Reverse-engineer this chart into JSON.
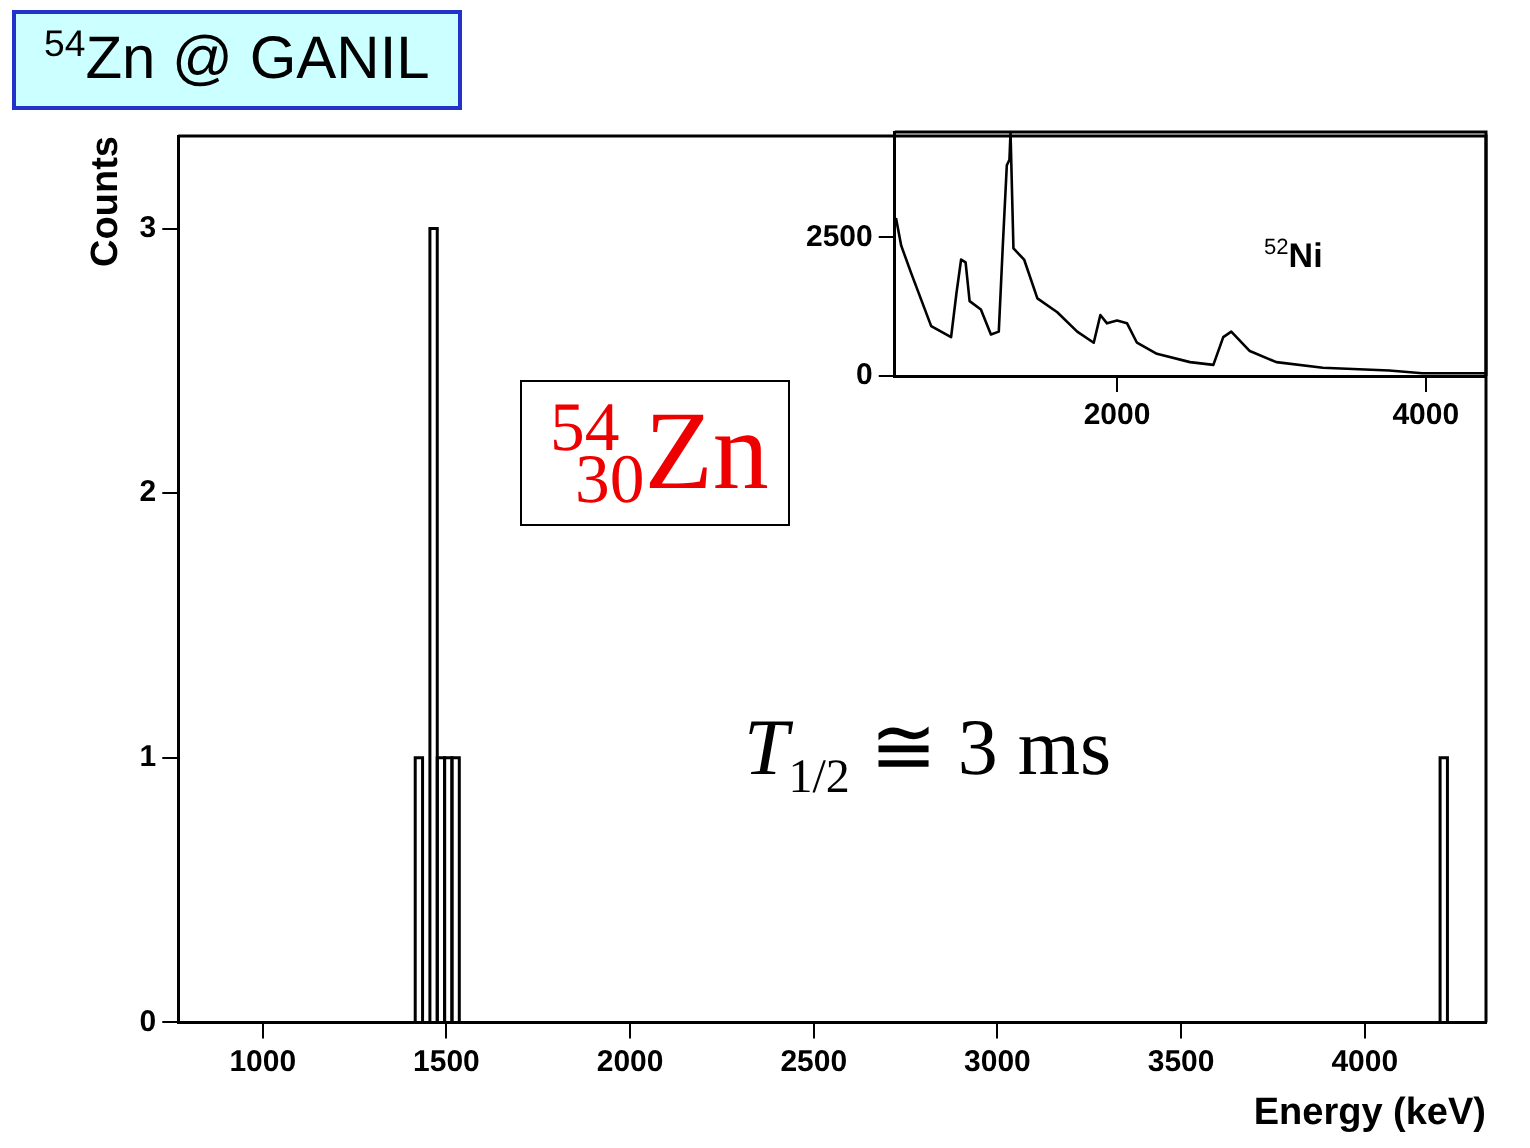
{
  "chart_data": [
    {
      "type": "histogram",
      "title": "$^{54}$Zn @ GANIL",
      "xlabel": "Energy (keV)",
      "ylabel": "Counts",
      "bins": [
        1415,
        1435,
        1455,
        1475,
        1495,
        1515,
        1535,
        4205,
        4225
      ],
      "values": [
        1,
        0,
        3,
        1,
        1,
        1,
        0,
        1
      ],
      "color": "#000000",
      "xlim": [
        770,
        4330
      ],
      "xticks": [
        1000,
        1500,
        2000,
        2500,
        3000,
        3500,
        4000
      ],
      "ylim": [
        0,
        3.35
      ],
      "yticks": [
        0,
        1,
        2,
        3
      ],
      "annotations": [
        "$^{54}$$_{30}$Zn",
        "T$_{1/2}$ ≅ 3 ms"
      ],
      "grid": false,
      "legend": false
    },
    {
      "type": "line",
      "x": [
        568,
        602,
        667,
        796,
        925,
        960,
        990,
        1019,
        1045,
        1118,
        1183,
        1234,
        1260,
        1286,
        1303,
        1310,
        1329,
        1398,
        1484,
        1613,
        1742,
        1849,
        1892,
        1935,
        2000,
        2065,
        2129,
        2258,
        2473,
        2624,
        2688,
        2740,
        2860,
        3032,
        3333,
        3763,
        3978,
        4387
      ],
      "values": [
        2850,
        2350,
        1850,
        900,
        700,
        1500,
        2100,
        2050,
        1350,
        1200,
        750,
        800,
        2350,
        3800,
        3900,
        4400,
        2300,
        2100,
        1400,
        1150,
        800,
        600,
        1100,
        950,
        1000,
        950,
        600,
        400,
        250,
        200,
        700,
        800,
        450,
        250,
        150,
        100,
        50,
        50
      ],
      "color": "#000000",
      "xlim": [
        560,
        4390
      ],
      "xticks": [
        2000,
        4000
      ],
      "ylim": [
        0,
        4400
      ],
      "yticks": [
        0,
        2500
      ],
      "annotations": [
        "$^{52}$Ni"
      ],
      "grid": false,
      "legend": false,
      "marker": "none"
    }
  ]
}
